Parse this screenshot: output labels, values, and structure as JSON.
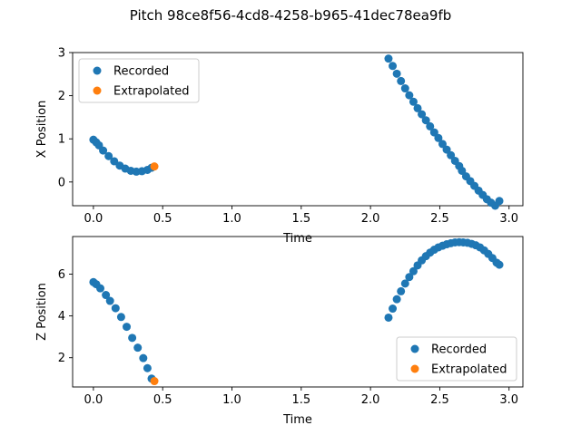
{
  "title": "Pitch 98ce8f56-4cd8-4258-b965-41dec78ea9fb",
  "colors": {
    "recorded": "#1f77b4",
    "extrapolated": "#ff7f0e"
  },
  "chart_data": [
    {
      "type": "scatter",
      "xlabel": "Time",
      "ylabel": "X Position",
      "xlim": [
        -0.15,
        3.1
      ],
      "ylim": [
        -0.55,
        3.0
      ],
      "xticks": [
        "0.0",
        "0.5",
        "1.0",
        "1.5",
        "2.0",
        "2.5",
        "3.0"
      ],
      "yticks": [
        "0",
        "1",
        "2",
        "3"
      ],
      "legend": "upper-left",
      "series": [
        {
          "name": "Recorded",
          "color": "#1f77b4",
          "x": [
            0.0,
            0.02,
            0.04,
            0.07,
            0.11,
            0.15,
            0.19,
            0.23,
            0.27,
            0.31,
            0.35,
            0.39,
            0.42,
            2.13,
            2.16,
            2.19,
            2.22,
            2.25,
            2.28,
            2.31,
            2.34,
            2.37,
            2.4,
            2.43,
            2.46,
            2.49,
            2.52,
            2.55,
            2.58,
            2.61,
            2.64,
            2.66,
            2.69,
            2.72,
            2.75,
            2.78,
            2.81,
            2.84,
            2.87,
            2.9,
            2.93
          ],
          "y": [
            0.98,
            0.92,
            0.85,
            0.73,
            0.6,
            0.48,
            0.38,
            0.31,
            0.26,
            0.24,
            0.25,
            0.28,
            0.33,
            2.86,
            2.69,
            2.51,
            2.34,
            2.17,
            2.01,
            1.86,
            1.71,
            1.57,
            1.43,
            1.29,
            1.15,
            1.02,
            0.88,
            0.75,
            0.62,
            0.49,
            0.37,
            0.26,
            0.13,
            0.02,
            -0.09,
            -0.2,
            -0.3,
            -0.4,
            -0.48,
            -0.55,
            -0.44
          ]
        },
        {
          "name": "Extrapolated",
          "color": "#ff7f0e",
          "x": [
            0.44
          ],
          "y": [
            0.36
          ]
        }
      ]
    },
    {
      "type": "scatter",
      "xlabel": "Time",
      "ylabel": "Z Position",
      "xlim": [
        -0.15,
        3.1
      ],
      "ylim": [
        0.6,
        7.8
      ],
      "xticks": [
        "0.0",
        "0.5",
        "1.0",
        "1.5",
        "2.0",
        "2.5",
        "3.0"
      ],
      "yticks": [
        "2",
        "4",
        "6"
      ],
      "legend": "lower-right",
      "series": [
        {
          "name": "Recorded",
          "color": "#1f77b4",
          "x": [
            0.0,
            0.02,
            0.05,
            0.09,
            0.12,
            0.16,
            0.2,
            0.24,
            0.28,
            0.32,
            0.36,
            0.39,
            0.42,
            2.13,
            2.16,
            2.19,
            2.22,
            2.25,
            2.28,
            2.31,
            2.34,
            2.37,
            2.4,
            2.43,
            2.46,
            2.49,
            2.52,
            2.55,
            2.58,
            2.61,
            2.64,
            2.67,
            2.7,
            2.73,
            2.76,
            2.79,
            2.82,
            2.85,
            2.88,
            2.91,
            2.93
          ],
          "y": [
            5.62,
            5.52,
            5.32,
            5.0,
            4.72,
            4.37,
            3.95,
            3.48,
            2.95,
            2.48,
            1.98,
            1.5,
            1.0,
            3.92,
            4.35,
            4.8,
            5.18,
            5.55,
            5.86,
            6.14,
            6.42,
            6.66,
            6.86,
            7.03,
            7.17,
            7.28,
            7.36,
            7.43,
            7.48,
            7.52,
            7.53,
            7.52,
            7.5,
            7.45,
            7.38,
            7.28,
            7.14,
            6.97,
            6.77,
            6.55,
            6.45
          ]
        },
        {
          "name": "Extrapolated",
          "color": "#ff7f0e",
          "x": [
            0.44
          ],
          "y": [
            0.88
          ]
        }
      ]
    }
  ]
}
